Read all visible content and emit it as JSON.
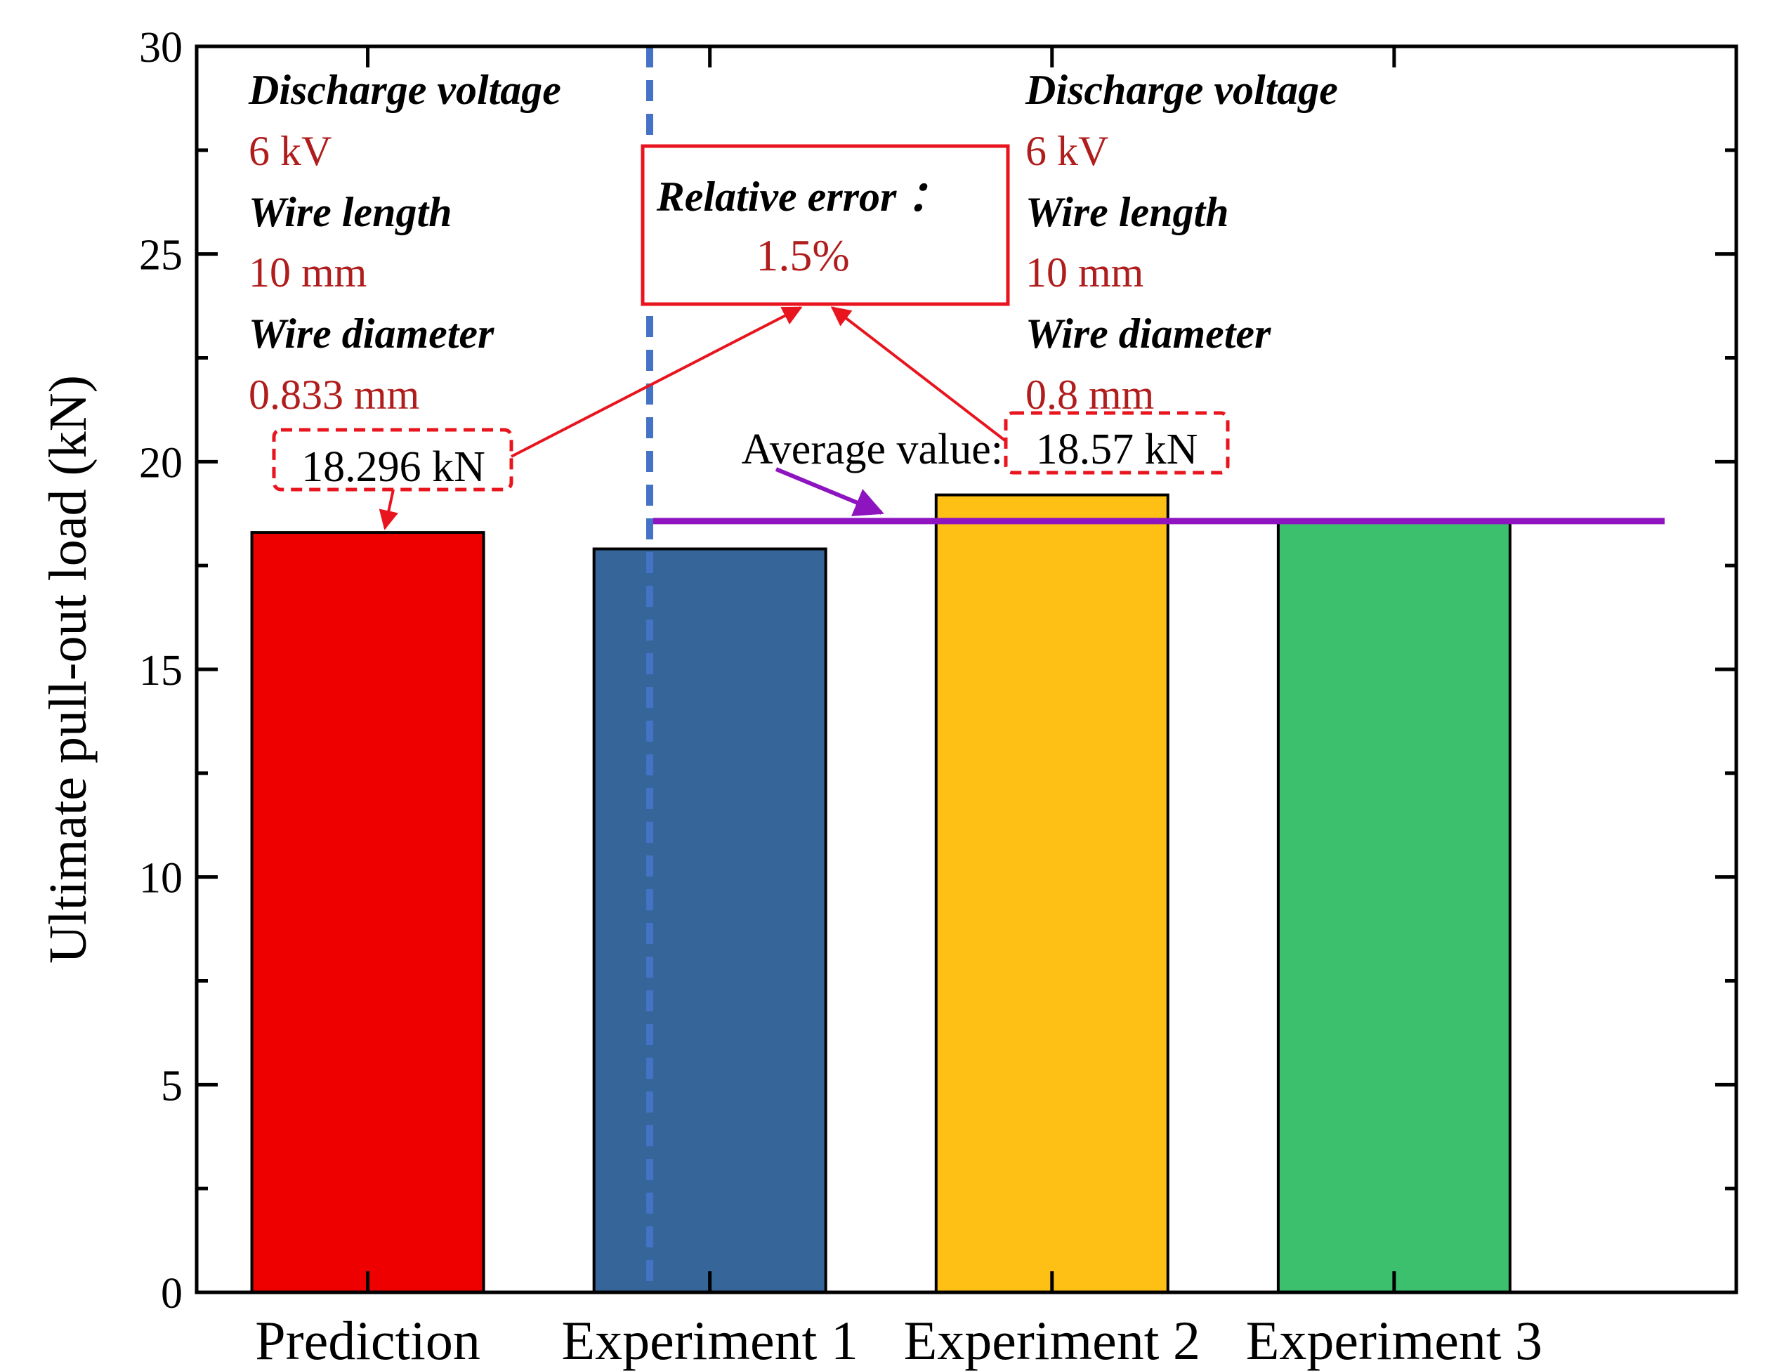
{
  "chart_data": {
    "type": "bar",
    "title": "",
    "xlabel": "",
    "ylabel": "Ultimate pull-out load (kN)",
    "ylim": [
      0,
      30
    ],
    "yticks": [
      0,
      5,
      10,
      15,
      20,
      25,
      30
    ],
    "categories": [
      "Prediction",
      "Experiment 1",
      "Experiment 2",
      "Experiment 3"
    ],
    "values": [
      18.296,
      17.9,
      19.2,
      18.6
    ],
    "bar_colors": [
      "#ee0000",
      "#366699",
      "#ffc015",
      "#3cc06e"
    ],
    "average_line": {
      "value": 18.57,
      "color": "#8e14c0",
      "label": "Average value:",
      "value_text": "18.57 kN"
    },
    "separator_color": "#4472c4",
    "prediction_value_text": "18.296 kN",
    "relative_error": {
      "label": "Relative error ：",
      "value": "1.5%"
    },
    "left_annotation": {
      "voltage_label": "Discharge voltage",
      "voltage": "6 kV",
      "length_label": "Wire length",
      "length": "10 mm",
      "diameter_label": "Wire diameter",
      "diameter": "0.833 mm"
    },
    "right_annotation": {
      "voltage_label": "Discharge voltage",
      "voltage": "6 kV",
      "length_label": "Wire length",
      "length": "10 mm",
      "diameter_label": "Wire diameter",
      "diameter": "0.8 mm"
    },
    "annotation_color": "#b01d1d",
    "arrow_color": "#e8141e"
  }
}
